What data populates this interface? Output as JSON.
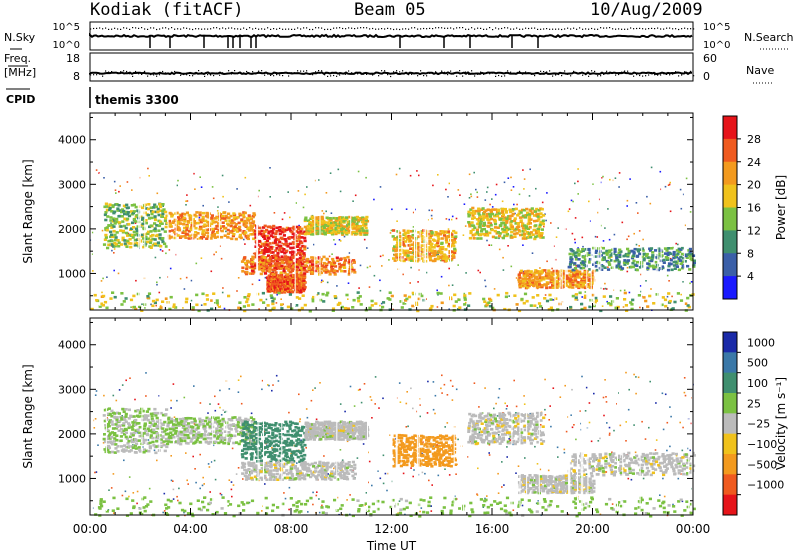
{
  "header": {
    "station": "Kodiak (fitACF)",
    "beam": "Beam 05",
    "date": "10/Aug/2009"
  },
  "strip_labels": {
    "nsky": "N.Sky",
    "nsearch": "N.Search",
    "freq_top": "Freq.",
    "freq_unit": "[MHz]",
    "nave": "Nave",
    "cpid": "CPID",
    "cpid_value": "themis 3300",
    "nsky_ticks": [
      "10^5",
      "10^0"
    ],
    "nsearch_ticks": [
      "10^5",
      "10^0"
    ],
    "freq_ticks": [
      "18",
      "8"
    ],
    "nave_ticks": [
      "60",
      "0"
    ]
  },
  "chart_data": [
    {
      "type": "heatmap",
      "title": "",
      "xlabel": "Time UT",
      "ylabel": "Slant Range [km]",
      "xlim": [
        0,
        24
      ],
      "ylim": [
        180,
        4600
      ],
      "x_ticks": [
        "00:00",
        "04:00",
        "08:00",
        "12:00",
        "16:00",
        "20:00",
        "00:00"
      ],
      "y_ticks": [
        1000,
        2000,
        3000,
        4000
      ],
      "colorbar": {
        "label": "Power [dB]",
        "ticks": [
          4,
          8,
          12,
          16,
          20,
          24,
          28
        ],
        "range": [
          0,
          32
        ]
      },
      "colors": [
        "#1a1aff",
        "#3a5fa8",
        "#3f8f6f",
        "#7bc142",
        "#f0c21c",
        "#f39a1e",
        "#ef5a1f",
        "#e6141a"
      ],
      "echo_regions": [
        {
          "t": [
            0.5,
            3.0
          ],
          "r": [
            1600,
            2600
          ],
          "level": 14
        },
        {
          "t": [
            3.0,
            6.5
          ],
          "r": [
            1800,
            2400
          ],
          "level": 22
        },
        {
          "t": [
            6.5,
            8.5
          ],
          "r": [
            1100,
            2100
          ],
          "level": 28
        },
        {
          "t": [
            7.0,
            8.5
          ],
          "r": [
            600,
            1000
          ],
          "level": 26
        },
        {
          "t": [
            8.5,
            11.0
          ],
          "r": [
            1900,
            2300
          ],
          "level": 18
        },
        {
          "t": [
            6.0,
            10.5
          ],
          "r": [
            1000,
            1400
          ],
          "level": 24
        },
        {
          "t": [
            12.0,
            14.5
          ],
          "r": [
            1300,
            2000
          ],
          "level": 20
        },
        {
          "t": [
            15.0,
            18.0
          ],
          "r": [
            1800,
            2500
          ],
          "level": 18
        },
        {
          "t": [
            17.0,
            20.0
          ],
          "r": [
            700,
            1100
          ],
          "level": 22
        },
        {
          "t": [
            19.0,
            24.0
          ],
          "r": [
            1100,
            1600
          ],
          "level": 10
        },
        {
          "t": [
            0.0,
            24.0
          ],
          "r": [
            180,
            600
          ],
          "level": 16
        }
      ]
    },
    {
      "type": "heatmap",
      "title": "",
      "xlabel": "Time UT",
      "ylabel": "Slant Range [km]",
      "xlim": [
        0,
        24
      ],
      "ylim": [
        180,
        4600
      ],
      "x_ticks": [
        "00:00",
        "04:00",
        "08:00",
        "12:00",
        "16:00",
        "20:00",
        "00:00"
      ],
      "y_ticks": [
        1000,
        2000,
        3000,
        4000
      ],
      "colorbar": {
        "label": "Velocity [m s⁻¹]",
        "ticks": [
          "1000",
          "500",
          "100",
          "25",
          "−25",
          "−100",
          "−500",
          "−1000"
        ]
      },
      "colors": [
        "#1a2aa8",
        "#3a78a8",
        "#3f8f6f",
        "#7bc142",
        "#bbbbbb",
        "#f0c21c",
        "#f39a1e",
        "#ef5a1f",
        "#e6141a"
      ],
      "echo_regions": [
        {
          "t": [
            0.5,
            3.0
          ],
          "r": [
            1600,
            2600
          ],
          "level": 25
        },
        {
          "t": [
            3.0,
            6.5
          ],
          "r": [
            1800,
            2400
          ],
          "level": 25
        },
        {
          "t": [
            6.0,
            8.5
          ],
          "r": [
            1400,
            2300
          ],
          "level": 150
        },
        {
          "t": [
            8.5,
            11.0
          ],
          "r": [
            1900,
            2300
          ],
          "level": 0
        },
        {
          "t": [
            6.0,
            10.5
          ],
          "r": [
            1000,
            1400
          ],
          "level": 0
        },
        {
          "t": [
            12.0,
            14.5
          ],
          "r": [
            1300,
            2000
          ],
          "level": -150
        },
        {
          "t": [
            15.0,
            18.0
          ],
          "r": [
            1800,
            2500
          ],
          "level": 0
        },
        {
          "t": [
            17.0,
            20.0
          ],
          "r": [
            700,
            1100
          ],
          "level": 0
        },
        {
          "t": [
            19.0,
            24.0
          ],
          "r": [
            1100,
            1600
          ],
          "level": 0
        },
        {
          "t": [
            0.0,
            24.0
          ],
          "r": [
            180,
            600
          ],
          "level": 50
        }
      ]
    }
  ]
}
